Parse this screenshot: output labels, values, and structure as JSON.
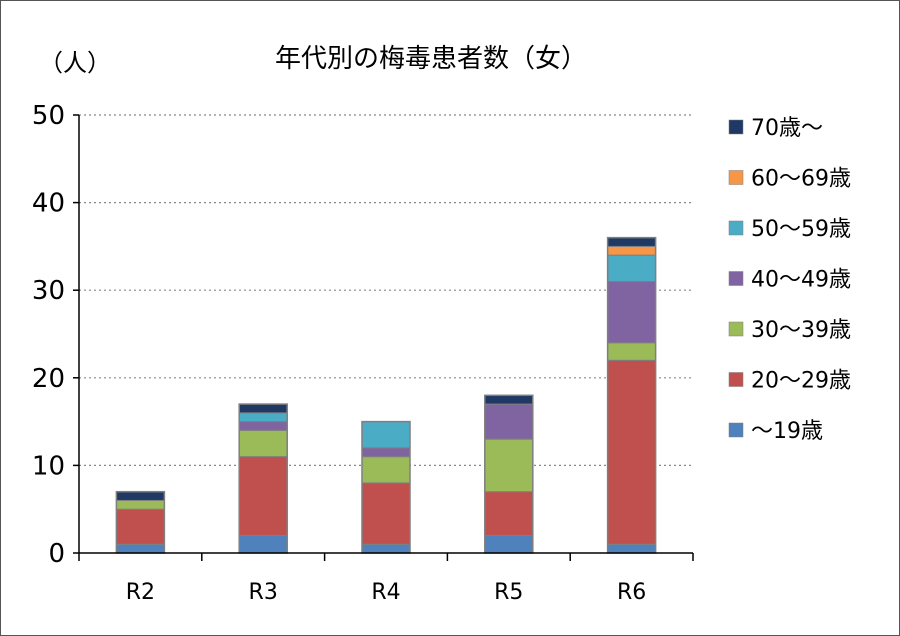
{
  "chart_data": {
    "type": "bar",
    "stacked": true,
    "title": "年代別の梅毒患者数（女）",
    "ylabel": "（人）",
    "xlabel": "",
    "ylim": [
      0,
      50
    ],
    "yticks": [
      "0",
      "10",
      "20",
      "30",
      "40",
      "50"
    ],
    "grid": true,
    "legend_position": "right",
    "categories": [
      "R2",
      "R3",
      "R4",
      "R5",
      "R6"
    ],
    "series": [
      {
        "name": "～19歳",
        "color": "#4f81bd",
        "values": [
          1,
          2,
          1,
          2,
          1
        ]
      },
      {
        "name": "20～29歳",
        "color": "#c0504d",
        "values": [
          4,
          9,
          7,
          5,
          21
        ]
      },
      {
        "name": "30～39歳",
        "color": "#9bbb59",
        "values": [
          1,
          3,
          3,
          6,
          2
        ]
      },
      {
        "name": "40～49歳",
        "color": "#8064a2",
        "values": [
          0,
          1,
          1,
          4,
          7
        ]
      },
      {
        "name": "50～59歳",
        "color": "#4bacc6",
        "values": [
          0,
          1,
          3,
          0,
          3
        ]
      },
      {
        "name": "60～69歳",
        "color": "#f79646",
        "values": [
          0,
          0,
          0,
          0,
          1
        ]
      },
      {
        "name": "70歳～",
        "color": "#1f3864",
        "values": [
          1,
          1,
          0,
          1,
          1
        ]
      }
    ]
  }
}
